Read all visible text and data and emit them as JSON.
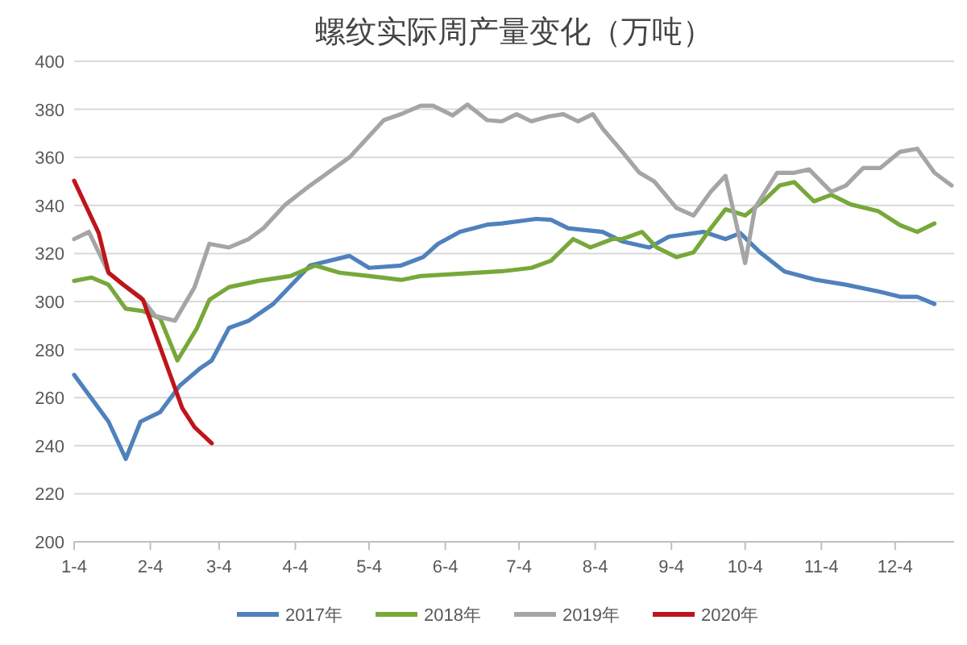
{
  "chart_data": {
    "type": "line",
    "title": "螺纹实际周产量变化（万吨）",
    "xlim": [
      "--01-04",
      "--12-28"
    ],
    "ylim": [
      200,
      400
    ],
    "xticks": [
      {
        "value": "--01-04",
        "label": "1-4"
      },
      {
        "value": "--02-04",
        "label": "2-4"
      },
      {
        "value": "--03-04",
        "label": "3-4"
      },
      {
        "value": "--04-04",
        "label": "4-4"
      },
      {
        "value": "--05-04",
        "label": "5-4"
      },
      {
        "value": "--06-04",
        "label": "6-4"
      },
      {
        "value": "--07-04",
        "label": "7-4"
      },
      {
        "value": "--08-04",
        "label": "8-4"
      },
      {
        "value": "--09-04",
        "label": "9-4"
      },
      {
        "value": "--10-04",
        "label": "10-4"
      },
      {
        "value": "--11-04",
        "label": "11-4"
      },
      {
        "value": "--12-04",
        "label": "12-4"
      }
    ],
    "yticks": [
      200,
      220,
      240,
      260,
      280,
      300,
      320,
      340,
      360,
      380,
      400
    ],
    "grid": "y",
    "legend": "bottom",
    "series": [
      {
        "name": "2017年",
        "color": "#4f81bd",
        "x": [
          "--01-04",
          "--01-18",
          "--01-25",
          "--01-31",
          "--02-08",
          "--02-16",
          "--02-24",
          "--03-01",
          "--03-08",
          "--03-16",
          "--03-26",
          "--04-10",
          "--04-26",
          "--05-04",
          "--05-17",
          "--05-26",
          "--06-01",
          "--06-10",
          "--06-21",
          "--06-27",
          "--07-11",
          "--07-17",
          "--07-24",
          "--08-07",
          "--08-15",
          "--08-26",
          "--09-03",
          "--09-17",
          "--09-26",
          "--10-02",
          "--10-10",
          "--10-20",
          "--11-02",
          "--11-14",
          "--11-28",
          "--12-06",
          "--12-13",
          "--12-20"
        ],
        "values": [
          269.5,
          250,
          234.5,
          250,
          254,
          265,
          272,
          275.5,
          289,
          292,
          299,
          315,
          319,
          314,
          315,
          318.5,
          324,
          329,
          332,
          332.5,
          334.4,
          334,
          330.5,
          329,
          325,
          322.5,
          327,
          329,
          326,
          328.5,
          320.5,
          312.5,
          309,
          307,
          304,
          302,
          302,
          299
        ]
      },
      {
        "name": "2018年",
        "color": "#77a83a",
        "x": [
          "--01-04",
          "--01-11",
          "--01-18",
          "--01-25",
          "--02-01",
          "--02-08",
          "--02-15",
          "--02-23",
          "--02-28",
          "--03-08",
          "--03-20",
          "--04-02",
          "--04-12",
          "--04-22",
          "--05-04",
          "--05-17",
          "--05-25",
          "--06-27",
          "--07-09",
          "--07-17",
          "--07-26",
          "--08-02",
          "--08-11",
          "--08-15",
          "--08-23",
          "--08-29",
          "--09-06",
          "--09-13",
          "--09-20",
          "--09-26",
          "--10-04",
          "--10-12",
          "--10-18",
          "--10-24",
          "--11-01",
          "--11-08",
          "--11-16",
          "--11-27",
          "--12-06",
          "--12-13",
          "--12-20"
        ],
        "values": [
          308.6,
          310,
          307,
          297,
          296,
          293,
          275.5,
          289,
          300.7,
          306,
          308.6,
          310.6,
          315,
          312,
          310.6,
          309,
          310.6,
          312.6,
          314,
          317,
          326,
          322.5,
          326,
          326,
          329,
          322.5,
          318.5,
          320.5,
          330.5,
          338.4,
          335.8,
          342.4,
          348.3,
          349.7,
          341.7,
          344.4,
          340.4,
          337.7,
          331.8,
          329,
          332.5
        ]
      },
      {
        "name": "2019年",
        "color": "#a5a5a5",
        "x": [
          "--01-04",
          "--01-10",
          "--01-18",
          "--01-24",
          "--01-31",
          "--02-06",
          "--02-14",
          "--02-22",
          "--02-28",
          "--03-08",
          "--03-16",
          "--03-22",
          "--03-31",
          "--04-10",
          "--04-26",
          "--05-10",
          "--05-17",
          "--05-25",
          "--05-30",
          "--06-07",
          "--06-13",
          "--06-21",
          "--06-27",
          "--07-03",
          "--07-09",
          "--07-16",
          "--07-22",
          "--07-28",
          "--08-03",
          "--08-07",
          "--08-14",
          "--08-22",
          "--08-28",
          "--09-06",
          "--09-13",
          "--09-20",
          "--09-26",
          "--10-04",
          "--10-08",
          "--10-17",
          "--10-24",
          "--10-30",
          "--11-08",
          "--11-14",
          "--11-21",
          "--11-28",
          "--12-06",
          "--12-13",
          "--12-20",
          "--12-27"
        ],
        "values": [
          326,
          329,
          312,
          307,
          302,
          294,
          292,
          306,
          324,
          322.5,
          326,
          330.5,
          340.4,
          348.3,
          360,
          375.5,
          378,
          381.5,
          381.5,
          377.5,
          382,
          375.5,
          375,
          378,
          375,
          377,
          378,
          375,
          378,
          372,
          363.6,
          353.6,
          350,
          339,
          335.8,
          345.7,
          352.3,
          316,
          339,
          353.6,
          353.6,
          355,
          345.7,
          348.3,
          355.6,
          355.6,
          362.3,
          363.6,
          353.6,
          348.3
        ]
      },
      {
        "name": "2020年",
        "color": "#c0141b",
        "x": [
          "--01-04",
          "--01-11",
          "--01-14",
          "--01-18",
          "--01-24",
          "--02-01",
          "--02-17",
          "--02-22",
          "--03-01"
        ],
        "values": [
          350.3,
          335,
          328.5,
          312,
          307,
          300.7,
          255.6,
          247.7,
          241
        ]
      }
    ]
  }
}
